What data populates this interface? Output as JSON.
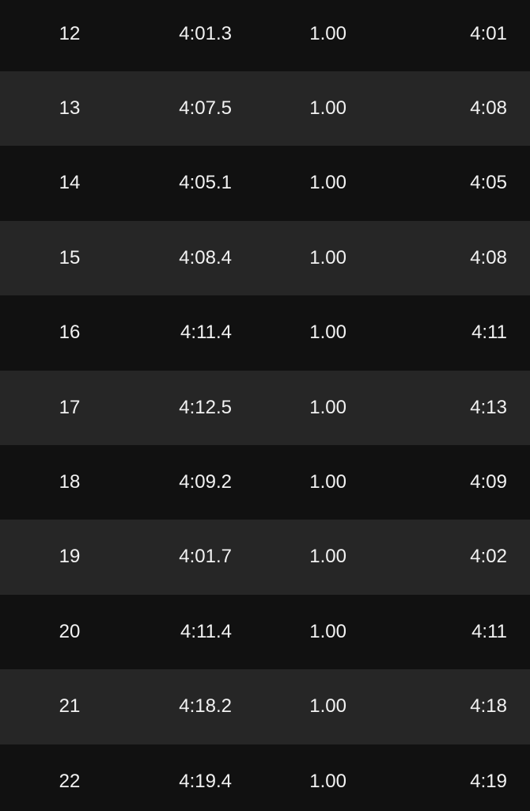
{
  "table": {
    "rows": [
      [
        "12",
        "4:01.3",
        "1.00",
        "4:01"
      ],
      [
        "13",
        "4:07.5",
        "1.00",
        "4:08"
      ],
      [
        "14",
        "4:05.1",
        "1.00",
        "4:05"
      ],
      [
        "15",
        "4:08.4",
        "1.00",
        "4:08"
      ],
      [
        "16",
        "4:11.4",
        "1.00",
        "4:11"
      ],
      [
        "17",
        "4:12.5",
        "1.00",
        "4:13"
      ],
      [
        "18",
        "4:09.2",
        "1.00",
        "4:09"
      ],
      [
        "19",
        "4:01.7",
        "1.00",
        "4:02"
      ],
      [
        "20",
        "4:11.4",
        "1.00",
        "4:11"
      ],
      [
        "21",
        "4:18.2",
        "1.00",
        "4:18"
      ],
      [
        "22",
        "4:19.4",
        "1.00",
        "4:19"
      ]
    ]
  }
}
